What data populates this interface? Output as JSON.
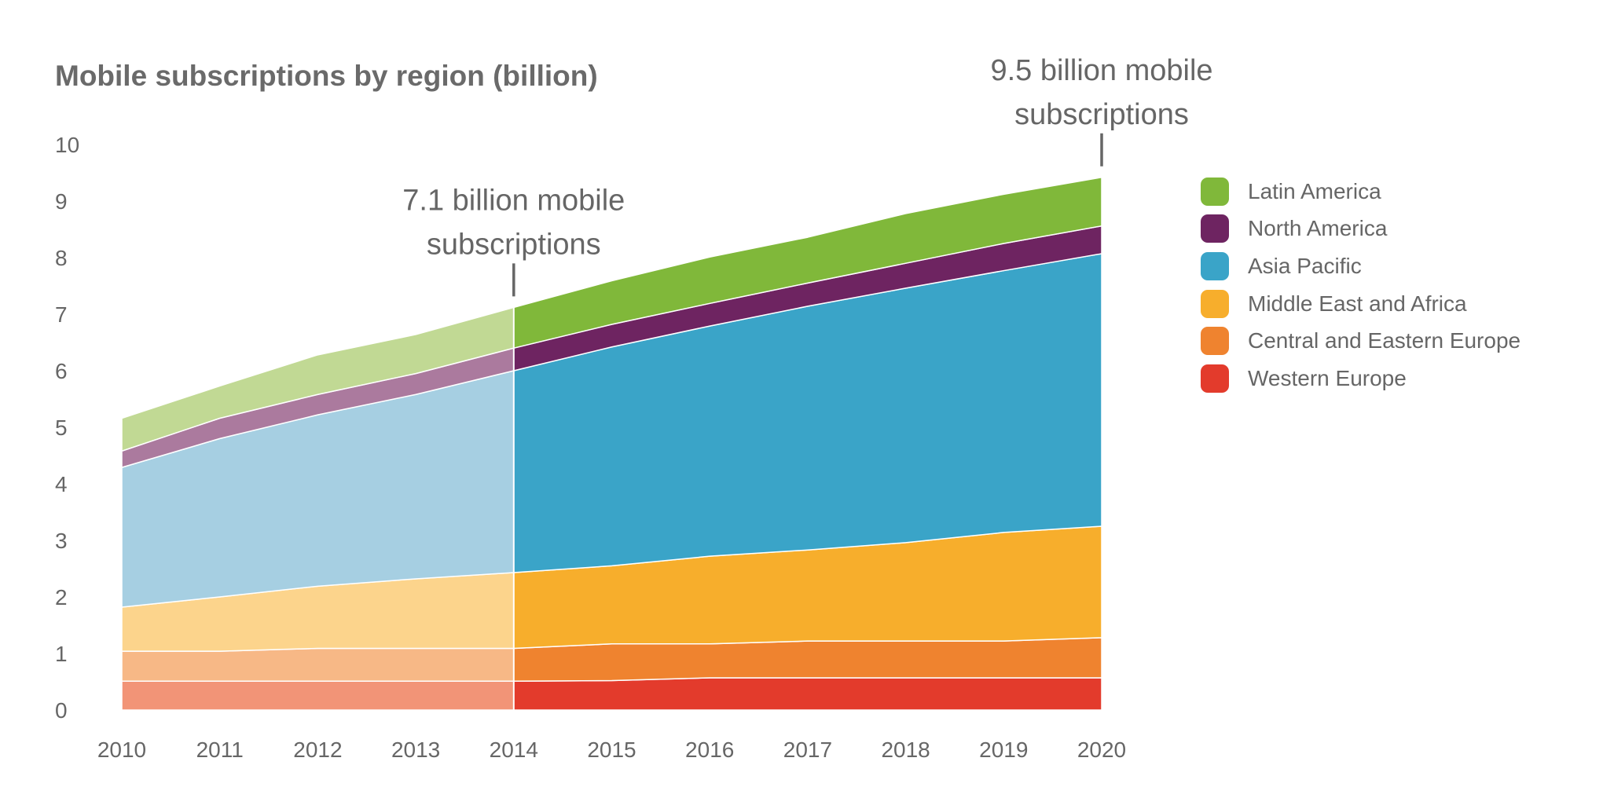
{
  "chart_data": {
    "type": "area",
    "stacked": true,
    "title": "Mobile subscriptions by region (billion)",
    "xlabel": "",
    "ylabel": "",
    "x": [
      2010,
      2011,
      2012,
      2013,
      2014,
      2015,
      2016,
      2017,
      2018,
      2019,
      2020
    ],
    "ylim": [
      0,
      10
    ],
    "yticks": [
      0,
      1,
      2,
      3,
      4,
      5,
      6,
      7,
      8,
      9,
      10
    ],
    "grid": false,
    "legend_position": "right",
    "faded_until": 2014,
    "series": [
      {
        "name": "Western Europe",
        "color": "#e33b2c",
        "faded_color": "#f29477",
        "values": [
          0.51,
          0.51,
          0.51,
          0.51,
          0.51,
          0.52,
          0.57,
          0.57,
          0.57,
          0.57,
          0.57
        ]
      },
      {
        "name": "Central and Eastern Europe",
        "color": "#ef832f",
        "faded_color": "#f7b886",
        "values": [
          0.53,
          0.53,
          0.58,
          0.58,
          0.58,
          0.65,
          0.6,
          0.65,
          0.65,
          0.65,
          0.71
        ]
      },
      {
        "name": "Middle East and Africa",
        "color": "#f7ae2c",
        "faded_color": "#fcd48c",
        "values": [
          0.78,
          0.96,
          1.1,
          1.23,
          1.34,
          1.38,
          1.55,
          1.61,
          1.74,
          1.92,
          1.97
        ]
      },
      {
        "name": "Asia Pacific",
        "color": "#3aa4c8",
        "faded_color": "#a6cfe2",
        "values": [
          2.47,
          2.8,
          3.03,
          3.26,
          3.57,
          3.87,
          4.07,
          4.31,
          4.5,
          4.63,
          4.82
        ]
      },
      {
        "name": "North America",
        "color": "#6e2461",
        "faded_color": "#ab7a9e",
        "values": [
          0.29,
          0.36,
          0.36,
          0.37,
          0.4,
          0.4,
          0.4,
          0.41,
          0.44,
          0.48,
          0.49
        ]
      },
      {
        "name": "Latin America",
        "color": "#80b83a",
        "faded_color": "#c1d994",
        "values": [
          0.58,
          0.57,
          0.7,
          0.69,
          0.72,
          0.77,
          0.82,
          0.81,
          0.88,
          0.87,
          0.86
        ]
      }
    ],
    "annotations": [
      {
        "x": 2014,
        "lines": [
          "7.1 billion mobile",
          "subscriptions"
        ]
      },
      {
        "x": 2020,
        "lines": [
          "9.5 billion mobile",
          "subscriptions"
        ]
      }
    ]
  }
}
